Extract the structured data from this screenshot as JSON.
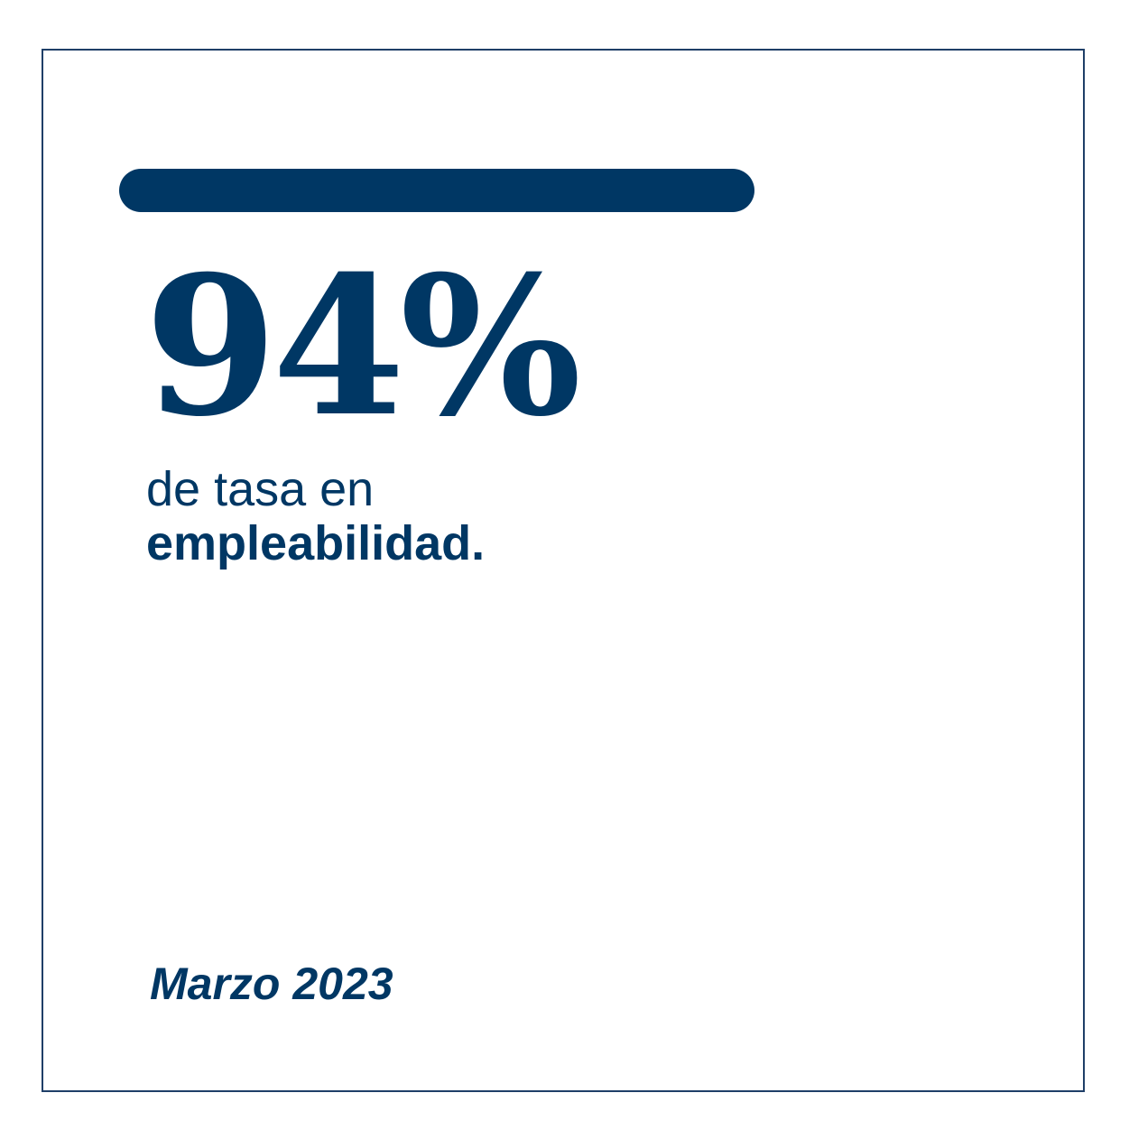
{
  "card": {
    "stat_value": "94%",
    "description_line1": "de tasa en",
    "description_line2": "empleabilidad.",
    "date": "Marzo 2023"
  },
  "colors": {
    "accent": "#003764",
    "border": "#1f3f68",
    "background": "#ffffff"
  }
}
